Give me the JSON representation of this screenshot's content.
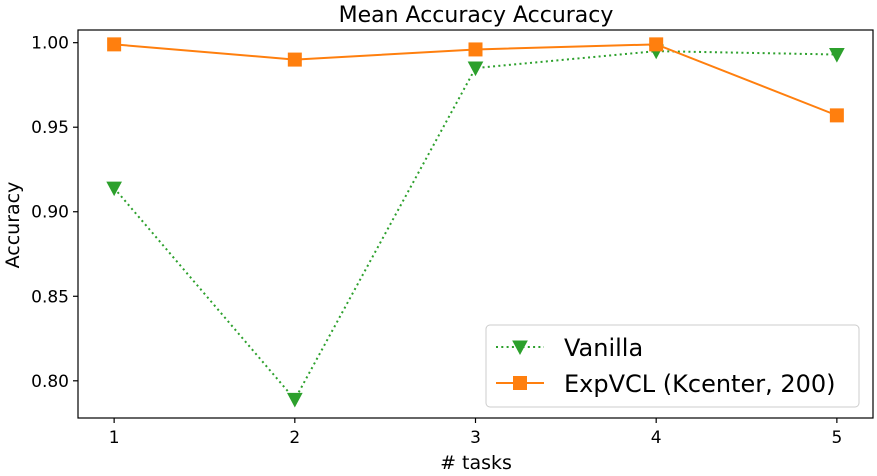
{
  "chart_data": {
    "type": "line",
    "title": "Mean Accuracy Accuracy",
    "xlabel": "# tasks",
    "ylabel": "Accuracy",
    "x": [
      1,
      2,
      3,
      4,
      5
    ],
    "xticks": [
      "1",
      "2",
      "3",
      "4",
      "5"
    ],
    "yticks": [
      "0.80",
      "0.85",
      "0.90",
      "0.95",
      "1.00"
    ],
    "ytick_values": [
      0.8,
      0.85,
      0.9,
      0.95,
      1.0
    ],
    "xlim": [
      0.8,
      5.2
    ],
    "ylim": [
      0.778,
      1.0075
    ],
    "grid": false,
    "legend_position": "bottom-right",
    "series": [
      {
        "name": "Vanilla",
        "values": [
          0.914,
          0.789,
          0.985,
          0.995,
          0.993
        ],
        "color": "#2ca02c",
        "line_style": "dotted",
        "marker": "triangle-down"
      },
      {
        "name": "ExpVCL (Kcenter, 200)",
        "values": [
          0.999,
          0.99,
          0.996,
          0.999,
          0.957
        ],
        "color": "#ff7f0e",
        "line_style": "solid",
        "marker": "square"
      }
    ]
  }
}
